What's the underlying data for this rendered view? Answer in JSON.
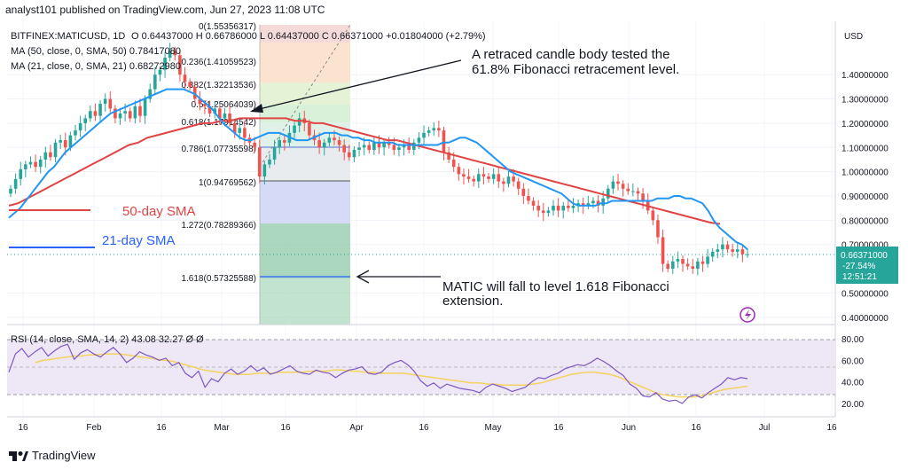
{
  "header": {
    "text": "analyst101 published on TradingView.com, Jun 27, 2023 11:08 UTC"
  },
  "legend": {
    "symbol": "BITFINEX:MATICUSD, 1D",
    "ohlc": "O 0.64437000  H 0.66786000  L 0.64437000  C 0.66371000  +0.01804000 (+2.79%)",
    "ma50": "MA (50, close, 0, SMA, 50)  0.78417080",
    "ma21": "MA (21, close, 0, SMA, 21)  0.68272980"
  },
  "currency": "USD",
  "price_tag": {
    "price": "0.66371000",
    "change": "-27.54%",
    "countdown": "12:51:21"
  },
  "labels": {
    "sma50": "50-day SMA",
    "sma21": "21-day SMA"
  },
  "annotations": {
    "a1_line1": "A retraced candle body tested the",
    "a1_line2": "61.8% Fibonacci retracement level.",
    "a2_line1": "MATIC will fall to level 1.618 Fibonacci",
    "a2_line2": "extension."
  },
  "fib_labels": [
    "0(1.55356317)",
    "0.236(1.41059523)",
    "0.382(1.32213536)",
    "0.5(1.25064039)",
    "0.618(1.17914542)",
    "0.786(1.07735598)",
    "1(0.94769562)",
    "1.272(0.78289366)",
    "1.618(0.57325588)"
  ],
  "rsi": {
    "legend": "RSI (14, close, SMA, 14, 2)  43.08  32.27  Ø  Ø",
    "ticks": [
      "80.00",
      "60.00",
      "40.00",
      "20.00"
    ]
  },
  "footer": {
    "brand": "TradingView"
  },
  "colors": {
    "up": "#26a69a",
    "down": "#ef5350",
    "ma21": "#2196f3",
    "ma50": "#e04444",
    "rsi": "#7e57c2",
    "rsiMA": "#f4d35e",
    "fibLine": "#2962ff"
  },
  "chart_data": {
    "type": "candlestick",
    "x_ticks": [
      "16",
      "Feb",
      "16",
      "Mar",
      "16",
      "Apr",
      "16",
      "May",
      "16",
      "Jun",
      "16",
      "Jul",
      "16"
    ],
    "ylim": [
      0.37,
      1.62
    ],
    "y_ticks": [
      "1.40000000",
      "1.30000000",
      "1.20000000",
      "1.10000000",
      "1.00000000",
      "0.90000000",
      "0.80000000",
      "0.70000000",
      "0.50000000",
      "0.40000000"
    ],
    "close": [
      0.93,
      0.97,
      1.01,
      1.03,
      1.04,
      1.02,
      1.05,
      1.08,
      1.06,
      1.12,
      1.13,
      1.1,
      1.15,
      1.17,
      1.2,
      1.22,
      1.25,
      1.23,
      1.28,
      1.3,
      1.26,
      1.22,
      1.24,
      1.25,
      1.22,
      1.27,
      1.23,
      1.3,
      1.34,
      1.4,
      1.42,
      1.47,
      1.5,
      1.48,
      1.4,
      1.37,
      1.35,
      1.3,
      1.28,
      1.27,
      1.24,
      1.26,
      1.22,
      1.24,
      1.2,
      1.16,
      1.18,
      1.14,
      1.12,
      1.1,
      0.98,
      1.03,
      1.05,
      1.1,
      1.13,
      1.12,
      1.16,
      1.19,
      1.22,
      1.2,
      1.15,
      1.13,
      1.1,
      1.12,
      1.14,
      1.13,
      1.11,
      1.08,
      1.06,
      1.09,
      1.1,
      1.11,
      1.09,
      1.12,
      1.1,
      1.12,
      1.11,
      1.09,
      1.1,
      1.11,
      1.09,
      1.12,
      1.14,
      1.16,
      1.17,
      1.18,
      1.17,
      1.08,
      1.05,
      1.02,
      0.99,
      0.98,
      0.97,
      0.96,
      0.99,
      0.98,
      0.97,
      0.99,
      0.96,
      0.95,
      0.98,
      0.96,
      0.93,
      0.9,
      0.88,
      0.86,
      0.84,
      0.83,
      0.84,
      0.86,
      0.84,
      0.86,
      0.85,
      0.86,
      0.87,
      0.86,
      0.87,
      0.88,
      0.86,
      0.89,
      0.93,
      0.96,
      0.95,
      0.93,
      0.92,
      0.92,
      0.91,
      0.88,
      0.84,
      0.8,
      0.73,
      0.62,
      0.6,
      0.63,
      0.64,
      0.62,
      0.61,
      0.6,
      0.63,
      0.62,
      0.65,
      0.67,
      0.68,
      0.7,
      0.68,
      0.67,
      0.68,
      0.66,
      0.66
    ],
    "sma21": [
      0.81,
      0.83,
      0.85,
      0.88,
      0.91,
      0.94,
      0.97,
      1.0,
      1.02,
      1.05,
      1.08,
      1.1,
      1.12,
      1.14,
      1.16,
      1.18,
      1.2,
      1.22,
      1.24,
      1.25,
      1.26,
      1.27,
      1.28,
      1.29,
      1.3,
      1.31,
      1.32,
      1.33,
      1.34,
      1.34,
      1.34,
      1.34,
      1.33,
      1.32,
      1.3,
      1.28,
      1.26,
      1.23,
      1.2,
      1.18,
      1.16,
      1.14,
      1.13,
      1.13,
      1.14,
      1.15,
      1.16,
      1.16,
      1.16,
      1.15,
      1.14,
      1.13,
      1.13,
      1.13,
      1.14,
      1.15,
      1.16,
      1.16,
      1.16,
      1.15,
      1.15,
      1.14,
      1.14,
      1.13,
      1.13,
      1.12,
      1.12,
      1.12,
      1.12,
      1.11,
      1.11,
      1.11,
      1.11,
      1.11,
      1.11,
      1.11,
      1.11,
      1.12,
      1.12,
      1.13,
      1.14,
      1.14,
      1.13,
      1.12,
      1.1,
      1.08,
      1.06,
      1.04,
      1.02,
      1.0,
      0.99,
      0.98,
      0.97,
      0.96,
      0.95,
      0.94,
      0.93,
      0.92,
      0.91,
      0.89,
      0.87,
      0.86,
      0.86,
      0.86,
      0.86,
      0.87,
      0.87,
      0.88,
      0.88,
      0.88,
      0.88,
      0.88,
      0.88,
      0.88,
      0.88,
      0.89,
      0.89,
      0.89,
      0.9,
      0.9,
      0.89,
      0.89,
      0.88,
      0.87,
      0.84,
      0.8,
      0.77,
      0.75,
      0.73,
      0.71,
      0.7,
      0.68
    ],
    "sma50": [
      0.86,
      0.87,
      0.89,
      0.91,
      0.93,
      0.95,
      0.97,
      0.99,
      1.01,
      1.03,
      1.05,
      1.07,
      1.09,
      1.11,
      1.12,
      1.14,
      1.15,
      1.16,
      1.17,
      1.18,
      1.19,
      1.2,
      1.2,
      1.21,
      1.21,
      1.22,
      1.22,
      1.22,
      1.22,
      1.22,
      1.22,
      1.21,
      1.21,
      1.2,
      1.2,
      1.19,
      1.18,
      1.17,
      1.16,
      1.15,
      1.14,
      1.13,
      1.13,
      1.12,
      1.11,
      1.1,
      1.09,
      1.08,
      1.07,
      1.06,
      1.05,
      1.04,
      1.03,
      1.02,
      1.01,
      1.0,
      0.99,
      0.98,
      0.97,
      0.96,
      0.95,
      0.94,
      0.93,
      0.92,
      0.91,
      0.9,
      0.89,
      0.88,
      0.87,
      0.86,
      0.85,
      0.84,
      0.83,
      0.82,
      0.81,
      0.8,
      0.79,
      0.785
    ],
    "rsi": [
      49,
      66,
      71,
      63,
      68,
      72,
      64,
      69,
      73,
      75,
      61,
      67,
      70,
      66,
      63,
      68,
      72,
      66,
      58,
      62,
      68,
      65,
      63,
      60,
      62,
      55,
      58,
      48,
      44,
      50,
      35,
      43,
      40,
      48,
      52,
      47,
      50,
      55,
      50,
      53,
      47,
      49,
      52,
      55,
      50,
      48,
      47,
      51,
      49,
      48,
      44,
      48,
      51,
      52,
      54,
      48,
      47,
      49,
      55,
      58,
      60,
      56,
      50,
      41,
      36,
      39,
      34,
      38,
      36,
      34,
      33,
      32,
      30,
      35,
      38,
      36,
      34,
      31,
      33,
      35,
      40,
      44,
      43,
      46,
      48,
      52,
      54,
      56,
      55,
      58,
      62,
      59,
      55,
      50,
      46,
      38,
      34,
      27,
      26,
      30,
      24,
      22,
      23,
      20,
      26,
      28,
      25,
      30,
      34,
      38,
      44,
      42,
      44,
      43
    ],
    "rsi_ma": [
      58,
      60,
      61,
      62,
      63,
      64,
      64,
      65,
      65,
      66,
      66,
      66,
      65,
      64,
      63,
      62,
      61,
      60,
      59,
      57,
      55,
      53,
      51,
      50,
      49,
      48,
      47,
      47,
      47,
      48,
      48,
      48,
      49,
      49,
      49,
      49,
      50,
      50,
      50,
      51,
      51,
      50,
      50,
      49,
      49,
      48,
      48,
      48,
      48,
      47,
      46,
      45,
      44,
      43,
      42,
      41,
      40,
      39,
      39,
      38,
      38,
      37,
      37,
      37,
      37,
      38,
      39,
      41,
      43,
      45,
      47,
      48,
      49,
      49,
      48,
      47,
      45,
      42,
      39,
      36,
      33,
      30,
      28,
      27,
      26,
      26,
      26,
      27,
      29,
      31,
      33,
      34,
      35,
      36
    ]
  }
}
